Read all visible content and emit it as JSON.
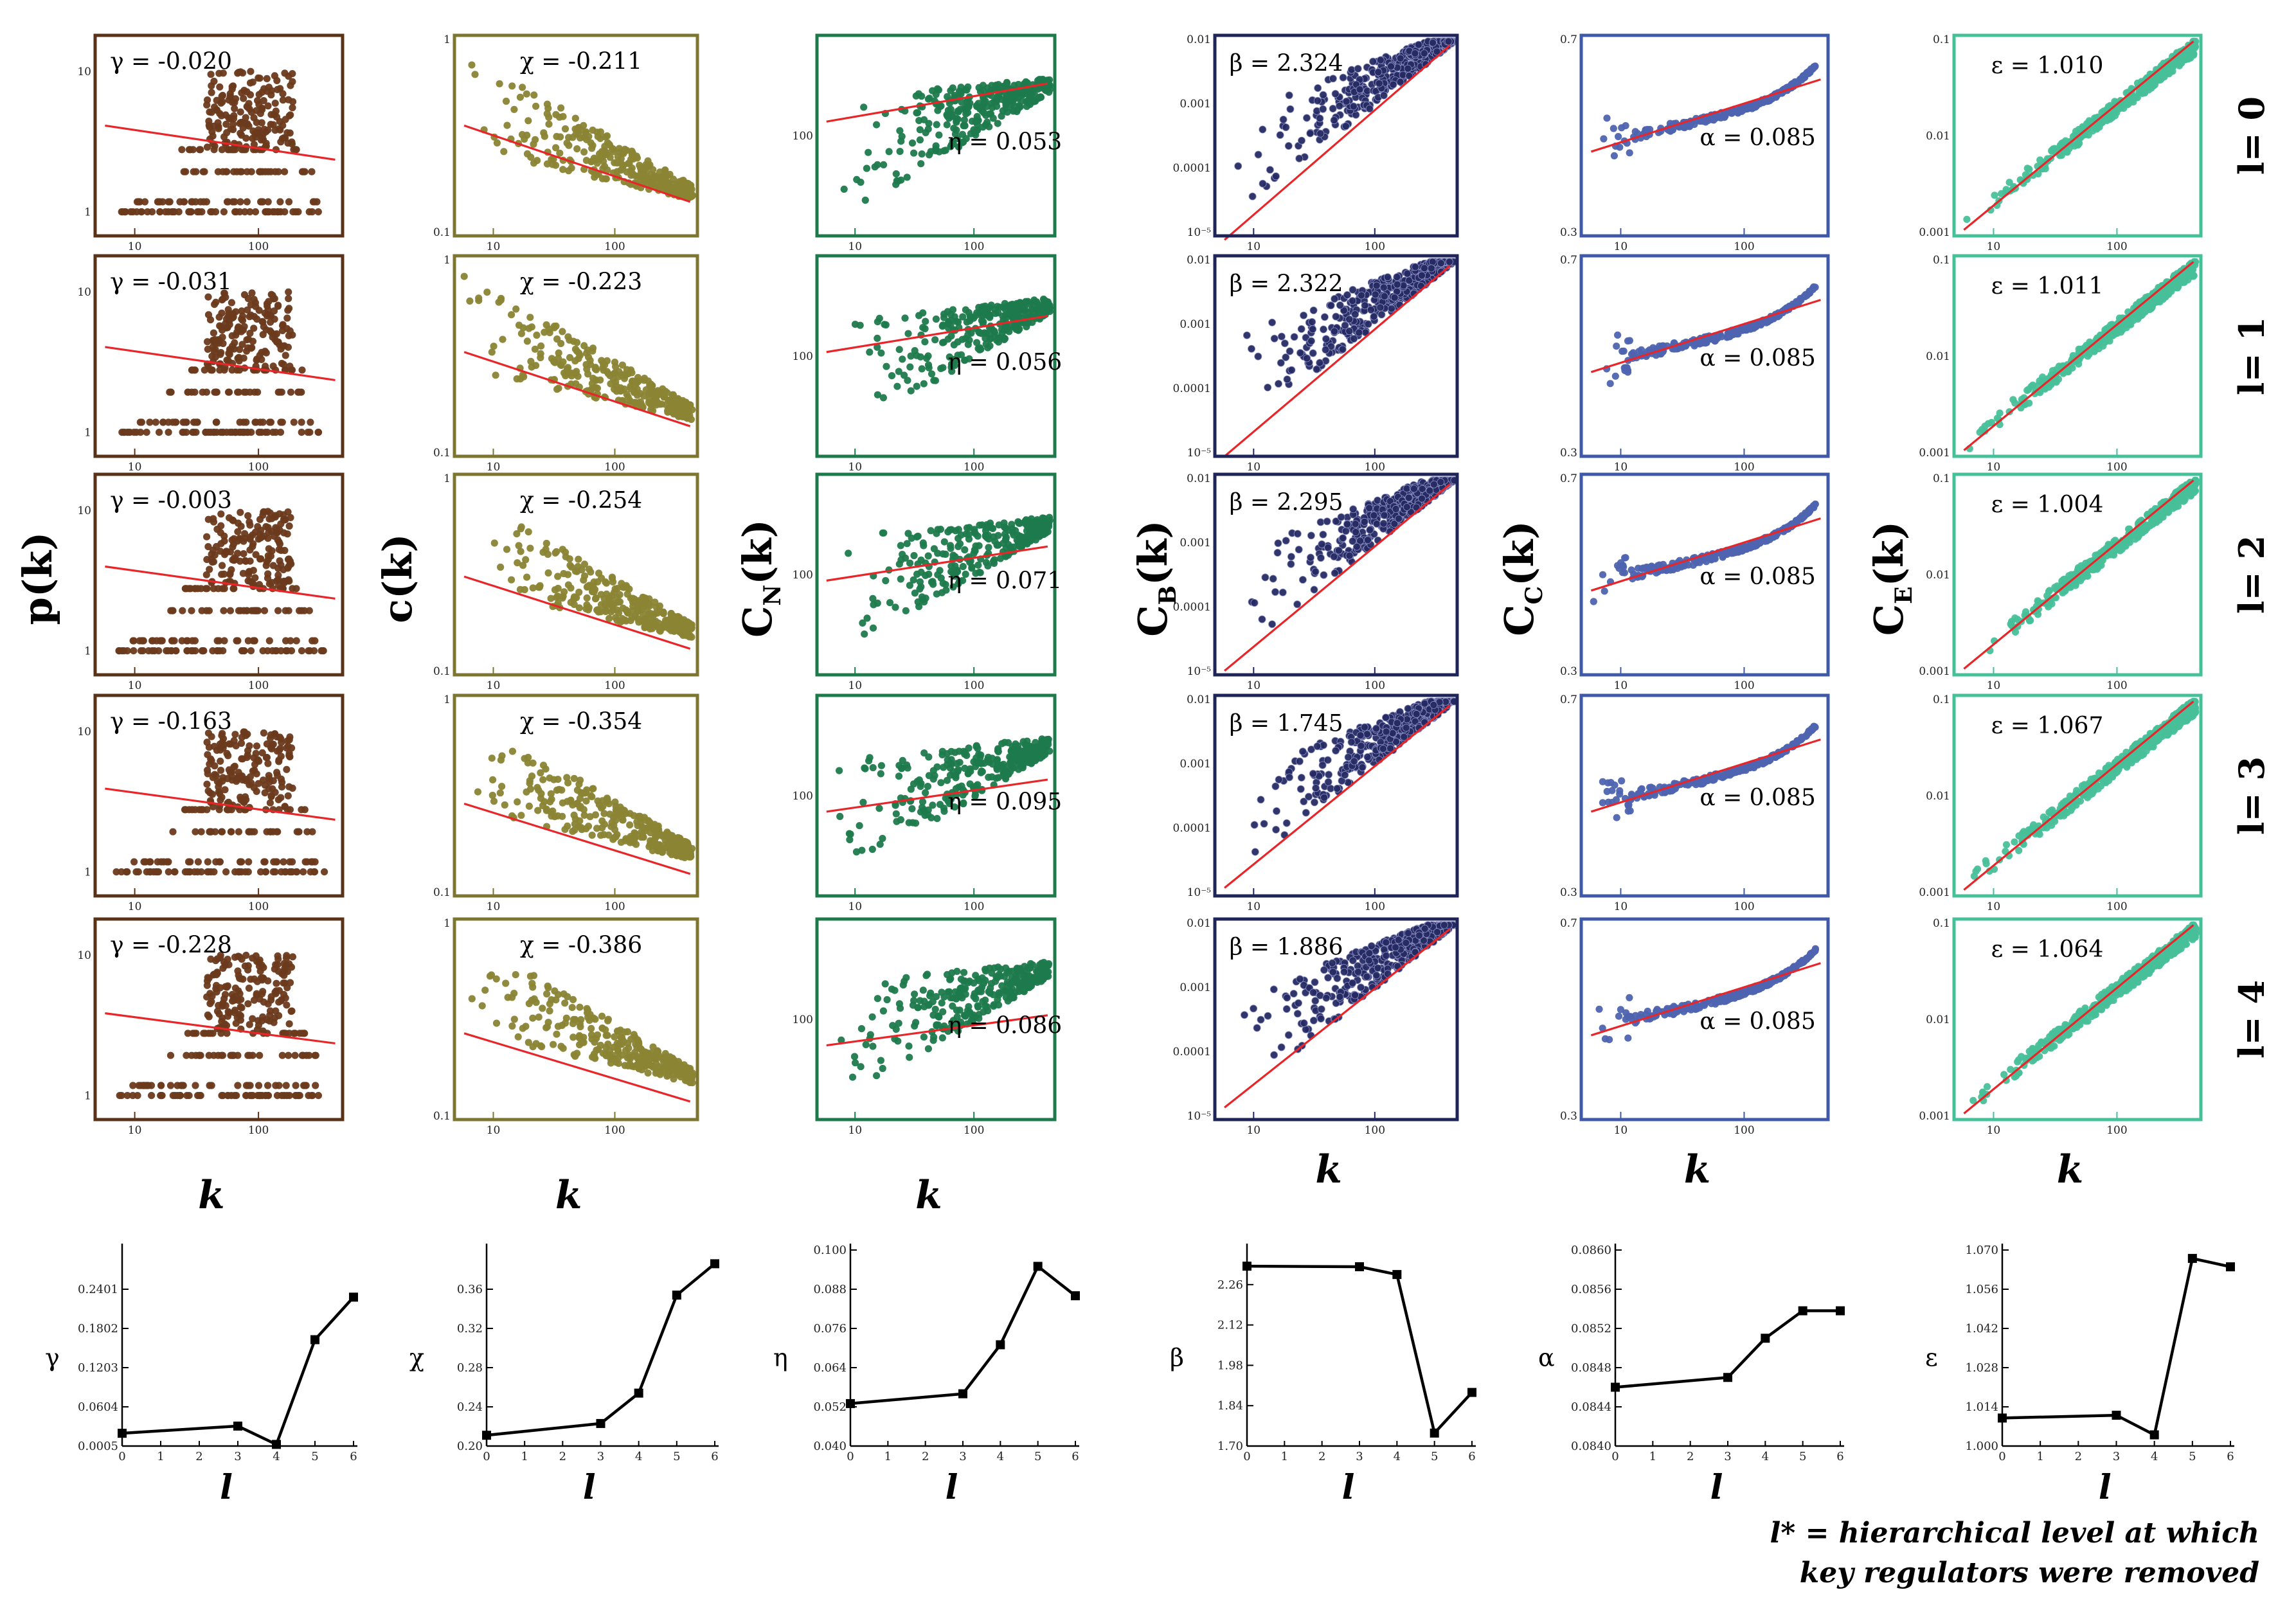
{
  "chart_data": {
    "type": "scatter",
    "description_text": {
      "footnote_line1": "l* = hierarchical level at which",
      "footnote_line2": "key regulators were removed"
    },
    "row_labels": [
      "l= 0",
      "l= 1",
      "l= 2",
      "l= 3",
      "l= 4"
    ],
    "columns": [
      {
        "id": "p",
        "ylabel": "p(k)",
        "ylabel_main": "p",
        "ylabel_sub": "",
        "xlabel": "k",
        "symbol": "γ",
        "color": "#6b3a1c",
        "frame_color": "#5a3218",
        "yticks": [
          "10",
          "1"
        ],
        "xticks": [
          "10",
          "100"
        ],
        "values": [
          "-0.020",
          "-0.031",
          "-0.003",
          "-0.163",
          "-0.228"
        ],
        "annotation_labels": [
          "γ = -0.020",
          "γ = -0.031",
          "γ = -0.003",
          "γ = -0.163",
          "γ = -0.228"
        ]
      },
      {
        "id": "c",
        "ylabel": "c(k)",
        "ylabel_main": "c",
        "ylabel_sub": "",
        "xlabel": "k",
        "symbol": "χ",
        "color": "#8a8434",
        "frame_color": "#7c7630",
        "yticks": [
          "1",
          "0.1"
        ],
        "xticks": [
          "10",
          "100"
        ],
        "values": [
          "-0.211",
          "-0.223",
          "-0.254",
          "-0.354",
          "-0.386"
        ],
        "annotation_labels": [
          "χ = -0.211",
          "χ = -0.223",
          "χ = -0.254",
          "χ = -0.354",
          "χ = -0.386"
        ]
      },
      {
        "id": "cn",
        "ylabel": "CN(k)",
        "ylabel_main": "C",
        "ylabel_sub": "N",
        "xlabel": "k",
        "symbol": "η",
        "color": "#1e7a4c",
        "frame_color": "#1d7a4a",
        "yticks": [
          "100"
        ],
        "xticks": [
          "10",
          "100"
        ],
        "values": [
          "0.053",
          "0.056",
          "0.071",
          "0.095",
          "0.086"
        ],
        "annotation_labels": [
          "η = 0.053",
          "η = 0.056",
          "η = 0.071",
          "η = 0.095",
          "η = 0.086"
        ]
      },
      {
        "id": "cb",
        "ylabel": "CB(k)",
        "ylabel_main": "C",
        "ylabel_sub": "B",
        "xlabel": "k",
        "symbol": "β",
        "color": "#252a62",
        "frame_color": "#1e2458",
        "yticks": [
          "0.01",
          "0.001",
          "0.0001",
          "10⁻⁵"
        ],
        "xticks": [
          "10",
          "100"
        ],
        "values": [
          "2.324",
          "2.322",
          "2.295",
          "1.745",
          "1.886"
        ],
        "annotation_labels": [
          "β = 2.324",
          "β = 2.322",
          "β = 2.295",
          "β = 1.745",
          "β = 1.886"
        ]
      },
      {
        "id": "cc",
        "ylabel": "CC(k)",
        "ylabel_main": "C",
        "ylabel_sub": "C",
        "xlabel": "k",
        "symbol": "α",
        "color": "#4f64b0",
        "frame_color": "#3f58a8",
        "yticks": [
          "0.7",
          "0.3"
        ],
        "xticks": [
          "10",
          "100"
        ],
        "values": [
          "0.085",
          "0.085",
          "0.085",
          "0.085",
          "0.085"
        ],
        "annotation_labels": [
          "α = 0.085",
          "α = 0.085",
          "α = 0.085",
          "α = 0.085",
          "α = 0.085"
        ]
      },
      {
        "id": "ce",
        "ylabel": "CE(k)",
        "ylabel_main": "C",
        "ylabel_sub": "E",
        "xlabel": "k",
        "symbol": "ε",
        "color": "#48c09a",
        "frame_color": "#45c19a",
        "yticks": [
          "0.1",
          "0.01",
          "0.001"
        ],
        "xticks": [
          "10",
          "100"
        ],
        "values": [
          "1.010",
          "1.011",
          "1.004",
          "1.067",
          "1.064"
        ],
        "annotation_labels": [
          "ε = 1.010",
          "ε = 1.011",
          "ε = 1.004",
          "ε = 1.067",
          "ε = 1.064"
        ]
      }
    ],
    "exponent_trends": {
      "type": "line",
      "xlabel": "l",
      "x": [
        0,
        3,
        4,
        5,
        6
      ],
      "xticks": [
        "0",
        "1",
        "2",
        "3",
        "4",
        "5",
        "6"
      ],
      "series": [
        {
          "name": "γ",
          "values": [
            0.02,
            0.031,
            0.003,
            0.163,
            0.228
          ],
          "ylim": [
            0.0005,
            0.3
          ],
          "yticks": [
            {
              "v": 0.0005,
              "label": "0.0005"
            },
            {
              "v": 0.0604,
              "label": "0.0604"
            },
            {
              "v": 0.1203,
              "label": "0.1203"
            },
            {
              "v": 0.1802,
              "label": "0.1802"
            },
            {
              "v": 0.2401,
              "label": "0.2401"
            }
          ]
        },
        {
          "name": "χ",
          "values": [
            0.211,
            0.223,
            0.254,
            0.354,
            0.386
          ],
          "ylim": [
            0.2,
            0.4
          ],
          "yticks": [
            {
              "v": 0.2,
              "label": "0.20"
            },
            {
              "v": 0.24,
              "label": "0.24"
            },
            {
              "v": 0.28,
              "label": "0.28"
            },
            {
              "v": 0.32,
              "label": "0.32"
            },
            {
              "v": 0.36,
              "label": "0.36"
            }
          ]
        },
        {
          "name": "η",
          "values": [
            0.053,
            0.056,
            0.071,
            0.095,
            0.086
          ],
          "ylim": [
            0.04,
            0.1
          ],
          "yticks": [
            {
              "v": 0.04,
              "label": "0.040"
            },
            {
              "v": 0.052,
              "label": "0.052"
            },
            {
              "v": 0.064,
              "label": "0.064"
            },
            {
              "v": 0.076,
              "label": "0.076"
            },
            {
              "v": 0.088,
              "label": "0.088"
            },
            {
              "v": 0.1,
              "label": "0.100"
            }
          ]
        },
        {
          "name": "β",
          "values": [
            2.324,
            2.322,
            2.295,
            1.745,
            1.886
          ],
          "ylim": [
            1.7,
            2.38
          ],
          "yticks": [
            {
              "v": 1.7,
              "label": "1.70"
            },
            {
              "v": 1.84,
              "label": "1.84"
            },
            {
              "v": 1.98,
              "label": "1.98"
            },
            {
              "v": 2.12,
              "label": "2.12"
            },
            {
              "v": 2.26,
              "label": "2.26"
            }
          ]
        },
        {
          "name": "α",
          "values": [
            0.0846,
            0.0847,
            0.0851,
            0.08538,
            0.08538
          ],
          "ylim": [
            0.084,
            0.086
          ],
          "yticks": [
            {
              "v": 0.084,
              "label": "0.0840"
            },
            {
              "v": 0.0844,
              "label": "0.0844"
            },
            {
              "v": 0.0848,
              "label": "0.0848"
            },
            {
              "v": 0.0852,
              "label": "0.0852"
            },
            {
              "v": 0.0856,
              "label": "0.0856"
            },
            {
              "v": 0.086,
              "label": "0.0860"
            }
          ]
        },
        {
          "name": "ε",
          "values": [
            1.01,
            1.011,
            1.004,
            1.067,
            1.064
          ],
          "ylim": [
            1.0,
            1.07
          ],
          "yticks": [
            {
              "v": 1.0,
              "label": "1.000"
            },
            {
              "v": 1.014,
              "label": "1.014"
            },
            {
              "v": 1.028,
              "label": "1.028"
            },
            {
              "v": 1.042,
              "label": "1.042"
            },
            {
              "v": 1.056,
              "label": "1.056"
            },
            {
              "v": 1.07,
              "label": "1.070"
            }
          ]
        }
      ]
    }
  }
}
